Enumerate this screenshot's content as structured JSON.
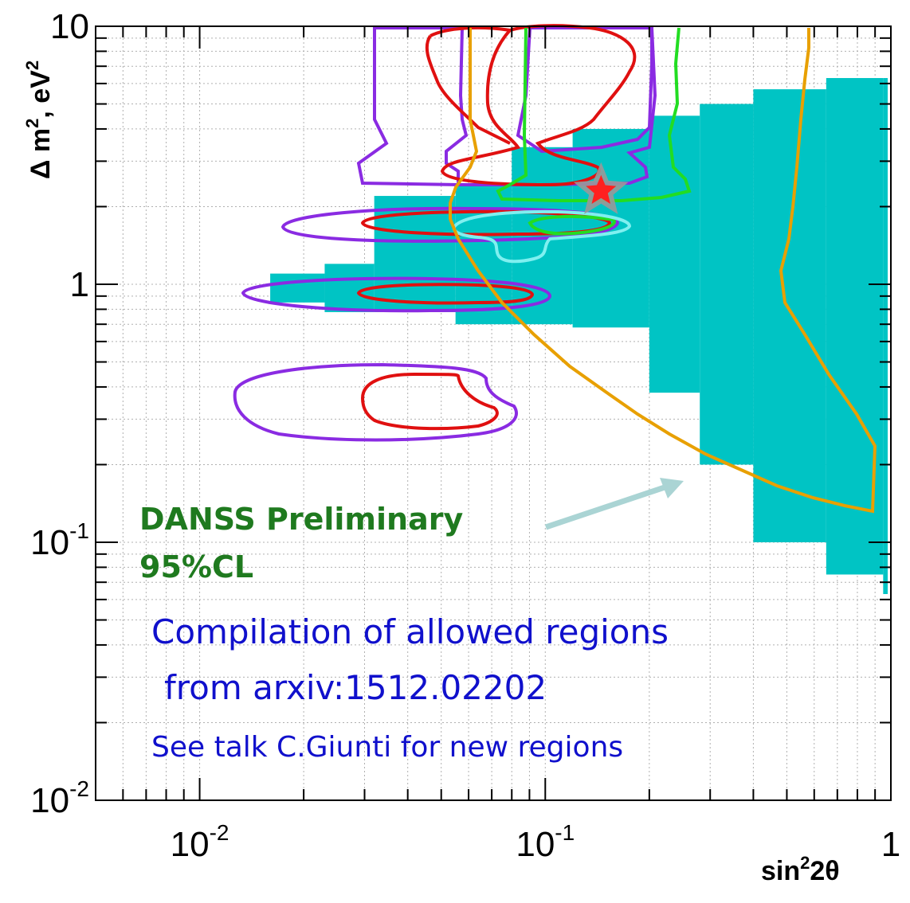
{
  "chart_data": {
    "type": "contour",
    "xscale": "log",
    "yscale": "log",
    "xlim": [
      0.005,
      1
    ],
    "ylim": [
      0.01,
      10
    ],
    "grid": true,
    "xlabel": {
      "base": "sin",
      "sup": "2",
      "tail": "2θ"
    },
    "ylabel": {
      "base": "Δ m",
      "sup": "2",
      "tail": ", eV"
    },
    "x_ticks": [
      {
        "value": 0.01,
        "base": "10",
        "exp": "-2"
      },
      {
        "value": 0.1,
        "base": "10",
        "exp": "-1"
      },
      {
        "value": 1,
        "base": "1",
        "exp": ""
      }
    ],
    "y_ticks": [
      {
        "value": 0.01,
        "base": "10",
        "exp": "-2"
      },
      {
        "value": 0.1,
        "base": "10",
        "exp": "-1"
      },
      {
        "value": 1,
        "base": "1",
        "exp": ""
      },
      {
        "value": 10,
        "base": "10",
        "exp": ""
      }
    ],
    "excluded_region": {
      "color": "#00c4c4",
      "steps": [
        {
          "s2": 0.016,
          "m_low": 0.85,
          "m_high": 1.1
        },
        {
          "s2": 0.023,
          "m_low": 0.78,
          "m_high": 1.2
        },
        {
          "s2": 0.032,
          "m_low": 0.78,
          "m_high": 2.2
        },
        {
          "s2": 0.055,
          "m_low": 0.7,
          "m_high": 2.4
        },
        {
          "s2": 0.08,
          "m_low": 0.7,
          "m_high": 3.4
        },
        {
          "s2": 0.12,
          "m_low": 0.68,
          "m_high": 4.0
        },
        {
          "s2": 0.2,
          "m_low": 0.38,
          "m_high": 4.5
        },
        {
          "s2": 0.28,
          "m_low": 0.2,
          "m_high": 5.0
        },
        {
          "s2": 0.4,
          "m_low": 0.1,
          "m_high": 5.7
        },
        {
          "s2": 0.65,
          "m_low": 0.075,
          "m_high": 6.3
        },
        {
          "s2": 0.95,
          "m_low": 0.063,
          "m_high": 6.3
        }
      ]
    },
    "best_fit": {
      "s2": 0.145,
      "m2": 2.3
    }
  },
  "annotations": {
    "danss_line1": "DANSS Preliminary",
    "danss_line2": "95%CL",
    "compilation_line1": "Compilation of allowed regions",
    "compilation_line2": "from arxiv:1512.02202",
    "talk_note": "See talk C.Giunti for new regions"
  },
  "colors": {
    "danss_fill": "#00c4c4",
    "contour_purple": "#8a2be2",
    "contour_red": "#e01010",
    "contour_green": "#22dd22",
    "contour_orange": "#e8a000",
    "contour_cyan": "#7ff0f0",
    "arrow": "#aad4d4",
    "danss_text": "#1f7a1f",
    "note_text": "#1010cc"
  }
}
